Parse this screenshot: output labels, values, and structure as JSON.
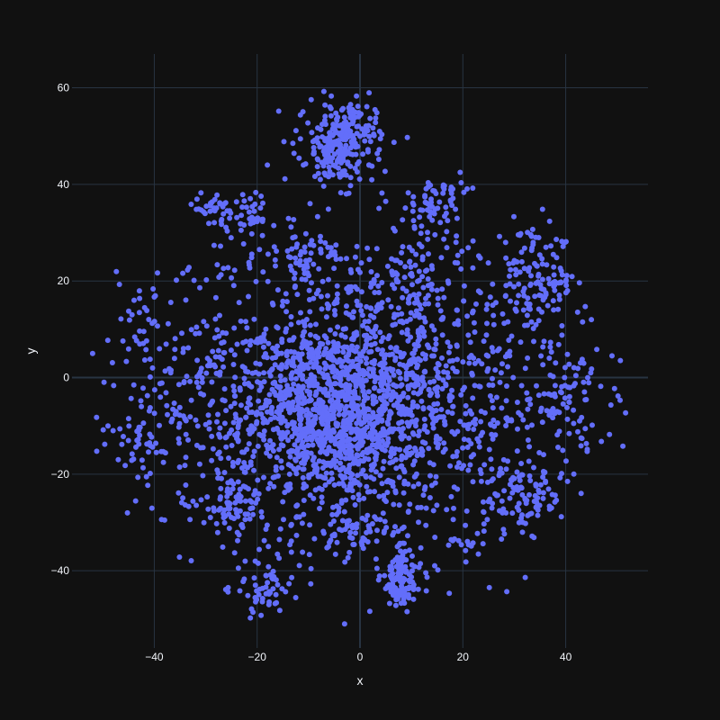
{
  "chart_data": {
    "type": "scatter",
    "title": "",
    "xlabel": "x",
    "ylabel": "y",
    "xlim": [
      -56,
      56
    ],
    "ylim": [
      -56,
      67
    ],
    "xticks": [
      -40,
      -20,
      0,
      20,
      40
    ],
    "yticks": [
      -40,
      -20,
      0,
      20,
      40,
      60
    ],
    "xtick_labels": [
      "−40",
      "−20",
      "0",
      "20",
      "40"
    ],
    "ytick_labels": [
      "−40",
      "−20",
      "0",
      "20",
      "40",
      "60"
    ],
    "grid": true,
    "legend": "none",
    "colors": {
      "background": "#111111",
      "grid": "#283442",
      "zeroline": "#283442",
      "marker": "#636efa",
      "text": "#f2f5fa"
    },
    "series": [
      {
        "clusters": [
          {
            "cx": -5,
            "cy": -8,
            "sx": 9,
            "sy": 9,
            "n": 900
          },
          {
            "cx": 0,
            "cy": -2,
            "sx": 22,
            "sy": 16,
            "n": 1500
          },
          {
            "cx": -4,
            "cy": 48,
            "sx": 3.5,
            "sy": 4,
            "n": 200
          },
          {
            "cx": -2,
            "cy": 52,
            "sx": 5,
            "sy": 4,
            "n": 60
          },
          {
            "cx": 8,
            "cy": -42,
            "sx": 2,
            "sy": 3,
            "n": 110
          },
          {
            "cx": -28,
            "cy": 35,
            "sx": 2.5,
            "sy": 1.5,
            "n": 40
          },
          {
            "cx": -21,
            "cy": 33,
            "sx": 2,
            "sy": 2,
            "n": 30
          },
          {
            "cx": 14,
            "cy": 34,
            "sx": 3,
            "sy": 3,
            "n": 60
          },
          {
            "cx": 34,
            "cy": 20,
            "sx": 4,
            "sy": 5,
            "n": 120
          },
          {
            "cx": 32,
            "cy": -25,
            "sx": 4,
            "sy": 3,
            "n": 80
          },
          {
            "cx": -25,
            "cy": -26,
            "sx": 3,
            "sy": 3,
            "n": 70
          },
          {
            "cx": -19,
            "cy": -44,
            "sx": 2.5,
            "sy": 3,
            "n": 50
          },
          {
            "cx": 0,
            "cy": -32,
            "sx": 4,
            "sy": 2,
            "n": 60
          },
          {
            "cx": 9,
            "cy": 22,
            "sx": 2.5,
            "sy": 4,
            "n": 40
          },
          {
            "cx": -10,
            "cy": 25,
            "sx": 3,
            "sy": 3,
            "n": 40
          },
          {
            "cx": 40,
            "cy": -5,
            "sx": 3,
            "sy": 5,
            "n": 60
          },
          {
            "cx": -44,
            "cy": -12,
            "sx": 3,
            "sy": 3,
            "n": 30
          },
          {
            "cx": -42,
            "cy": 12,
            "sx": 3,
            "sy": 6,
            "n": 25
          },
          {
            "cx": 20,
            "cy": -34,
            "sx": 2,
            "sy": 1,
            "n": 12
          },
          {
            "cx": 18,
            "cy": 39,
            "sx": 1.5,
            "sy": 1,
            "n": 12
          }
        ],
        "extra_points": [
          [
            -52,
            5
          ],
          [
            49,
            4.5
          ],
          [
            -3,
            -51
          ],
          [
            -48,
            -11
          ],
          [
            -47,
            -17
          ],
          [
            -18,
            44
          ],
          [
            -11,
            44
          ],
          [
            45,
            12
          ],
          [
            43,
            -24
          ],
          [
            -49,
            -10
          ]
        ]
      }
    ]
  }
}
